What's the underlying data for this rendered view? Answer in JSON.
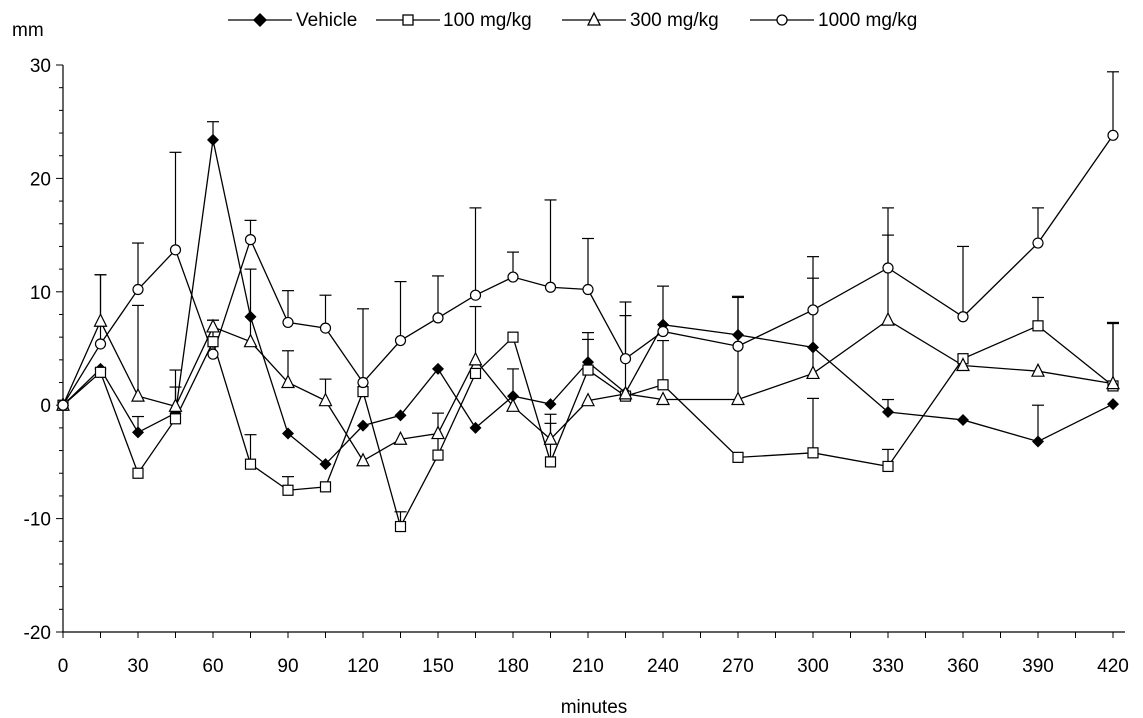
{
  "chart_data": {
    "type": "line",
    "xlabel": "minutes",
    "ylabel": "mm",
    "xlim": [
      0,
      420
    ],
    "ylim": [
      -20,
      30
    ],
    "x_ticks": [
      0,
      30,
      60,
      90,
      120,
      150,
      180,
      210,
      240,
      270,
      300,
      330,
      360,
      390,
      420
    ],
    "y_ticks": [
      -20,
      -10,
      0,
      10,
      20,
      30
    ],
    "grid": false,
    "legend_position": "top",
    "series": [
      {
        "name": "Vehicle",
        "marker": "diamond-filled",
        "x": [
          0,
          15,
          30,
          45,
          60,
          75,
          90,
          105,
          120,
          135,
          150,
          165,
          180,
          195,
          210,
          225,
          240,
          270,
          300,
          330,
          360,
          390,
          420
        ],
        "y": [
          0,
          3.2,
          -2.4,
          -0.7,
          23.4,
          7.8,
          -2.5,
          -5.2,
          -1.8,
          -0.9,
          3.2,
          -2.0,
          0.8,
          0.1,
          3.8,
          1.1,
          7.1,
          6.2,
          5.1,
          -0.6,
          -1.3,
          -3.2,
          0.1
        ],
        "err": [
          0,
          0,
          1.4,
          0,
          1.6,
          0,
          0,
          0,
          0,
          0,
          0,
          0,
          0,
          0,
          2.6,
          0,
          3.4,
          3.3,
          0,
          1.1,
          0,
          3.2,
          0
        ]
      },
      {
        "name": "100 mg/kg",
        "marker": "square-open",
        "x": [
          0,
          15,
          30,
          45,
          60,
          75,
          90,
          105,
          120,
          135,
          150,
          165,
          180,
          195,
          210,
          225,
          240,
          270,
          300,
          330,
          360,
          390,
          420
        ],
        "y": [
          0,
          2.9,
          -6.0,
          -1.2,
          5.6,
          -5.2,
          -7.5,
          -7.2,
          1.2,
          -10.7,
          -4.4,
          2.8,
          6.0,
          -5.0,
          3.1,
          0.8,
          1.8,
          -4.6,
          -4.2,
          -5.4,
          4.1,
          7.0,
          1.7
        ],
        "err": [
          0,
          0,
          0,
          4.3,
          0,
          2.6,
          1.2,
          0,
          0,
          1.3,
          3.7,
          0,
          0,
          3.4,
          2.7,
          7.1,
          3.9,
          0,
          4.8,
          1.5,
          0,
          2.5,
          5.6
        ]
      },
      {
        "name": "300 mg/kg",
        "marker": "triangle-open",
        "x": [
          0,
          15,
          30,
          45,
          60,
          75,
          90,
          105,
          120,
          135,
          150,
          165,
          180,
          195,
          210,
          225,
          240,
          270,
          300,
          330,
          360,
          390,
          420
        ],
        "y": [
          0,
          7.4,
          0.8,
          -0.1,
          6.9,
          5.6,
          2.0,
          0.4,
          -4.9,
          -3.0,
          -2.5,
          4.0,
          -0.1,
          -3.0,
          0.4,
          1.0,
          0.5,
          0.5,
          2.8,
          7.5,
          3.5,
          3.0,
          1.9
        ],
        "err": [
          0,
          4.1,
          8.0,
          1.7,
          0.6,
          6.4,
          2.8,
          1.9,
          0,
          0,
          0,
          4.7,
          3.3,
          2.2,
          0,
          0,
          0,
          9.1,
          8.4,
          7.5,
          0,
          0,
          5.3
        ]
      },
      {
        "name": "1000 mg/kg",
        "marker": "circle-open",
        "x": [
          0,
          15,
          30,
          45,
          60,
          75,
          90,
          105,
          120,
          135,
          150,
          165,
          180,
          195,
          210,
          225,
          240,
          270,
          300,
          330,
          360,
          390,
          420
        ],
        "y": [
          0,
          5.4,
          10.2,
          13.7,
          4.5,
          14.6,
          7.3,
          6.8,
          2.0,
          5.7,
          7.7,
          9.7,
          11.3,
          10.4,
          10.2,
          4.1,
          6.5,
          5.2,
          8.4,
          12.1,
          7.8,
          14.3,
          23.8
        ],
        "err": [
          0,
          6.1,
          4.1,
          8.6,
          3.0,
          1.7,
          2.8,
          2.9,
          6.5,
          5.2,
          3.7,
          7.7,
          2.2,
          7.7,
          4.5,
          5.0,
          0,
          0,
          4.7,
          5.3,
          6.2,
          3.1,
          5.6
        ]
      }
    ]
  }
}
